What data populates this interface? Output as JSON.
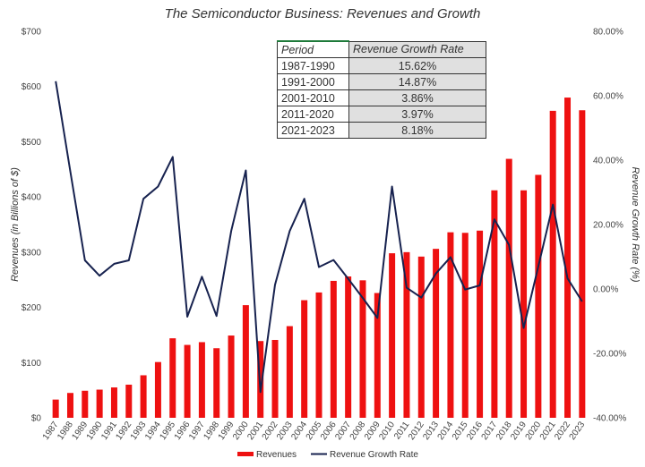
{
  "chart_data": {
    "type": "bar+line",
    "title": "The Semiconductor Business: Revenues and Growth",
    "ylabel_left": "Revenues (in Billions of $)",
    "ylabel_right": "Revenue Growth Rate (%)",
    "ylim_left": [
      0,
      700
    ],
    "ylim_right": [
      -40,
      80
    ],
    "left_ticks": [
      "$0",
      "$100",
      "$200",
      "$300",
      "$400",
      "$500",
      "$600",
      "$700"
    ],
    "right_ticks": [
      "-40.00%",
      "-20.00%",
      "0.00%",
      "20.00%",
      "40.00%",
      "60.00%",
      "80.00%"
    ],
    "categories": [
      "1987",
      "1988",
      "1989",
      "1990",
      "1991",
      "1992",
      "1993",
      "1994",
      "1995",
      "1996",
      "1997",
      "1998",
      "1999",
      "2000",
      "2001",
      "2002",
      "2003",
      "2004",
      "2005",
      "2006",
      "2007",
      "2008",
      "2009",
      "2010",
      "2011",
      "2012",
      "2013",
      "2014",
      "2015",
      "2016",
      "2017",
      "2018",
      "2019",
      "2020",
      "2021",
      "2022",
      "2023"
    ],
    "series": [
      {
        "name": "Revenues",
        "axis": "left",
        "kind": "bar",
        "color": "#ee1111",
        "values": [
          33,
          45,
          49,
          51,
          55,
          60,
          77,
          101,
          144,
          132,
          137,
          126,
          149,
          204,
          139,
          141,
          166,
          213,
          227,
          248,
          256,
          249,
          226,
          298,
          300,
          292,
          306,
          336,
          335,
          339,
          412,
          469,
          412,
          440,
          556,
          580,
          557
        ]
      },
      {
        "name": "Revenue Growth Rate",
        "axis": "right",
        "kind": "line",
        "color": "#17224f",
        "values": [
          64.5,
          36.5,
          8.9,
          4.1,
          7.8,
          8.9,
          28.0,
          31.8,
          41.0,
          -8.6,
          3.8,
          -8.4,
          18.0,
          36.8,
          -32.0,
          1.3,
          18.0,
          28.0,
          6.8,
          9.0,
          3.2,
          -2.8,
          -9.0,
          31.8,
          0.4,
          -2.7,
          4.8,
          9.9,
          -0.2,
          1.1,
          21.6,
          13.7,
          -12.1,
          7.0,
          26.2,
          3.3,
          -3.9
        ]
      }
    ],
    "legend": {
      "position": "bottom",
      "entries": [
        "Revenues",
        "Revenue Growth Rate"
      ]
    },
    "grid": false
  },
  "table": {
    "headers": [
      "Period",
      "Revenue Growth Rate"
    ],
    "rows": [
      [
        "1987-1990",
        "15.62%"
      ],
      [
        "1991-2000",
        "14.87%"
      ],
      [
        "2001-2010",
        "3.86%"
      ],
      [
        "2011-2020",
        "3.97%"
      ],
      [
        "2021-2023",
        "8.18%"
      ]
    ]
  }
}
